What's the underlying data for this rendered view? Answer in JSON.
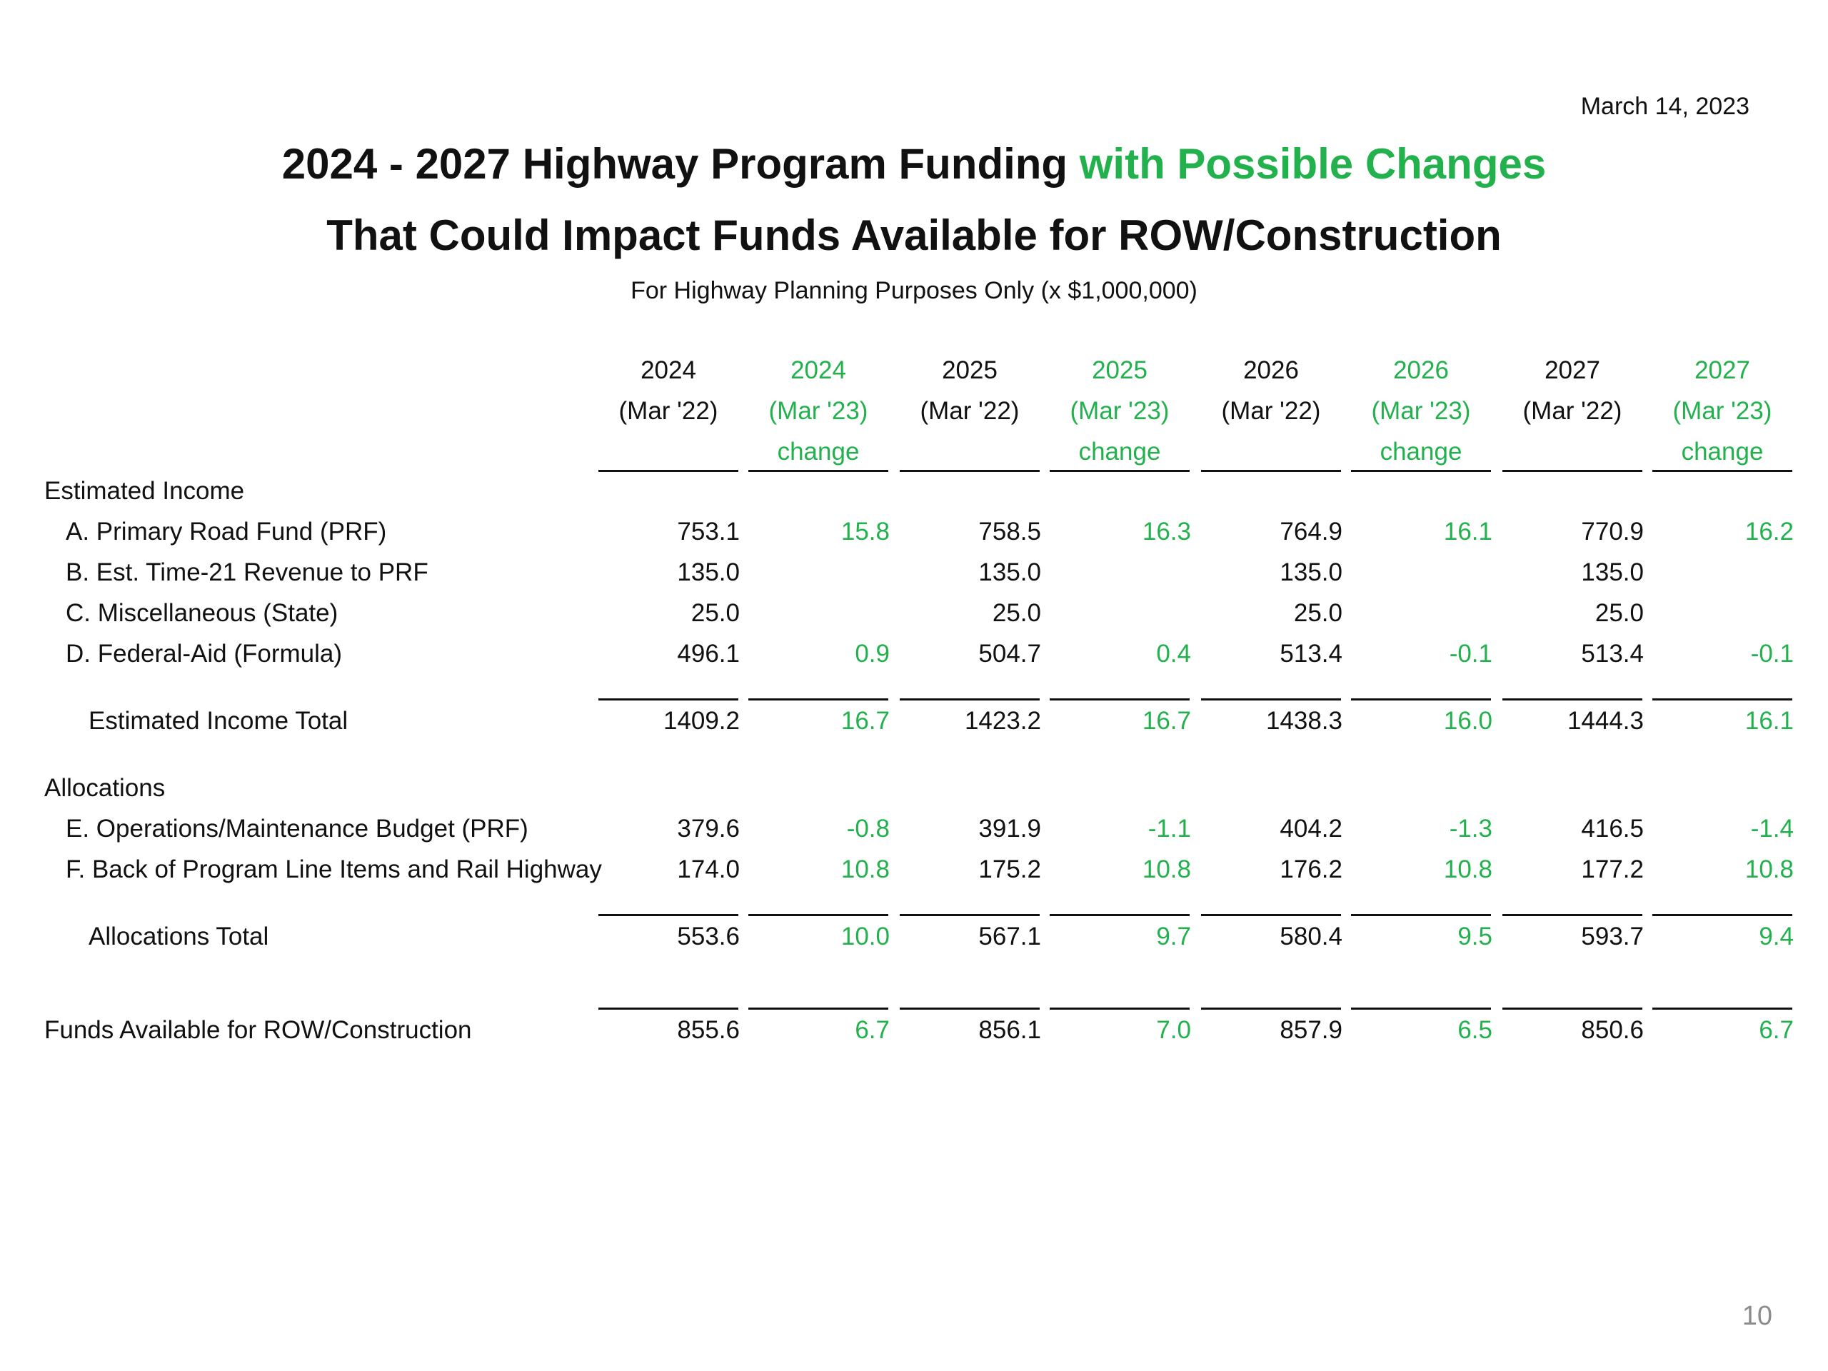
{
  "date": "March 14, 2023",
  "title": {
    "line1_part1": "2024 - 2027 Highway Program Funding ",
    "line1_highlight": "with Possible Changes",
    "line2": "That Could Impact Funds Available for ROW/Construction"
  },
  "subtitle": "For Highway Planning Purposes Only (x $1,000,000)",
  "columns": [
    {
      "year": "2024",
      "basis": "(Mar '22)",
      "note": ""
    },
    {
      "year": "2024",
      "basis": "(Mar '23)",
      "note": "change"
    },
    {
      "year": "2025",
      "basis": "(Mar '22)",
      "note": ""
    },
    {
      "year": "2025",
      "basis": "(Mar '23)",
      "note": "change"
    },
    {
      "year": "2026",
      "basis": "(Mar '22)",
      "note": ""
    },
    {
      "year": "2026",
      "basis": "(Mar '23)",
      "note": "change"
    },
    {
      "year": "2027",
      "basis": "(Mar '22)",
      "note": ""
    },
    {
      "year": "2027",
      "basis": "(Mar '23)",
      "note": "change"
    }
  ],
  "rows": {
    "income_header": "Estimated Income",
    "prf": {
      "label": "A. Primary Road Fund (PRF)",
      "values": [
        "753.1",
        "15.8",
        "758.5",
        "16.3",
        "764.9",
        "16.1",
        "770.9",
        "16.2"
      ]
    },
    "time21": {
      "label": "B. Est. Time-21 Revenue to PRF",
      "values": [
        "135.0",
        "",
        "135.0",
        "",
        "135.0",
        "",
        "135.0",
        ""
      ]
    },
    "misc": {
      "label": "C. Miscellaneous (State)",
      "values": [
        "25.0",
        "",
        "25.0",
        "",
        "25.0",
        "",
        "25.0",
        ""
      ]
    },
    "federal": {
      "label": "D. Federal-Aid (Formula)",
      "values": [
        "496.1",
        "0.9",
        "504.7",
        "0.4",
        "513.4",
        "-0.1",
        "513.4",
        "-0.1"
      ]
    },
    "income_total": {
      "label": "Estimated Income Total",
      "values": [
        "1409.2",
        "16.7",
        "1423.2",
        "16.7",
        "1438.3",
        "16.0",
        "1444.3",
        "16.1"
      ]
    },
    "alloc_header": "Allocations",
    "ops": {
      "label": "E. Operations/Maintenance Budget (PRF)",
      "values": [
        "379.6",
        "-0.8",
        "391.9",
        "-1.1",
        "404.2",
        "-1.3",
        "416.5",
        "-1.4"
      ]
    },
    "back": {
      "label": "F. Back of Program Line Items and Rail Highway",
      "values": [
        "174.0",
        "10.8",
        "175.2",
        "10.8",
        "176.2",
        "10.8",
        "177.2",
        "10.8"
      ]
    },
    "alloc_total": {
      "label": "Allocations Total",
      "values": [
        "553.6",
        "10.0",
        "567.1",
        "9.7",
        "580.4",
        "9.5",
        "593.7",
        "9.4"
      ]
    },
    "funds": {
      "label": "Funds Available for ROW/Construction",
      "values": [
        "855.6",
        "6.7",
        "856.1",
        "7.0",
        "857.9",
        "6.5",
        "850.6",
        "6.7"
      ]
    }
  },
  "colors": {
    "highlight": "#22b14c",
    "page_number": "#8c8c8c"
  },
  "page_number": "10"
}
